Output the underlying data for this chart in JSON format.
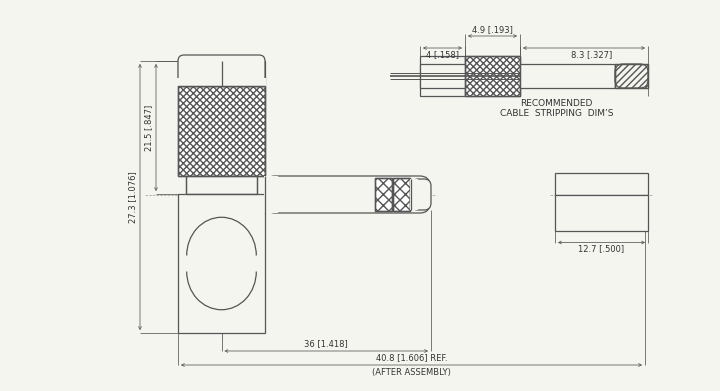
{
  "bg_color": "#f5f5f0",
  "line_color": "#555555",
  "text_color": "#333333",
  "fig_width": 7.2,
  "fig_height": 3.91,
  "dpi": 100,
  "lw": 0.9,
  "dlw": 0.55,
  "fs": 6.0,
  "annotations": {
    "dim_27_3": "27.3 [1.076]",
    "dim_21_5": "21.5 [.847]",
    "dim_36": "36 [1.418]",
    "dim_40_8": "40.8 [1.606] REF.",
    "after_assembly": "(AFTER ASSEMBLY)",
    "dim_4": "4 [.158]",
    "dim_4_9": "4.9 [.193]",
    "dim_8_3": "8.3 [.327]",
    "dim_12_7": "12.7 [.500]",
    "recommended": "RECOMMENDED",
    "cable_strip": "CABLE  STRIPPING  DIM’S"
  }
}
